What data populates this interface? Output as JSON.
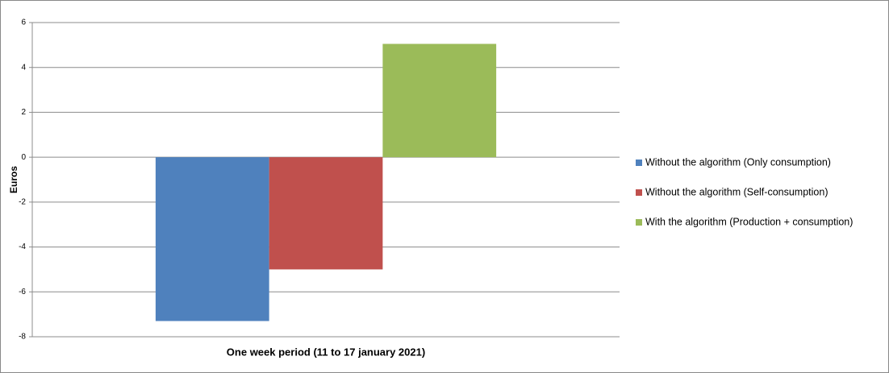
{
  "chart_data": {
    "type": "bar",
    "ylabel": "Euros",
    "categories": [
      "One week period (11 to 17 january 2021)"
    ],
    "series": [
      {
        "name": "Without the algorithm (Only consumption)",
        "color": "#4f81bd",
        "values": [
          -7.3
        ]
      },
      {
        "name": "Without the algorithm (Self-consumption)",
        "color": "#c0504d",
        "values": [
          -5.0
        ]
      },
      {
        "name": "With the algorithm (Production + consumption)",
        "color": "#9bbb59",
        "values": [
          5.05
        ]
      }
    ],
    "ylim": [
      -8,
      6
    ],
    "yticks": [
      -8,
      -6,
      -4,
      -2,
      0,
      2,
      4,
      6
    ],
    "grid": true,
    "legend": "right"
  }
}
